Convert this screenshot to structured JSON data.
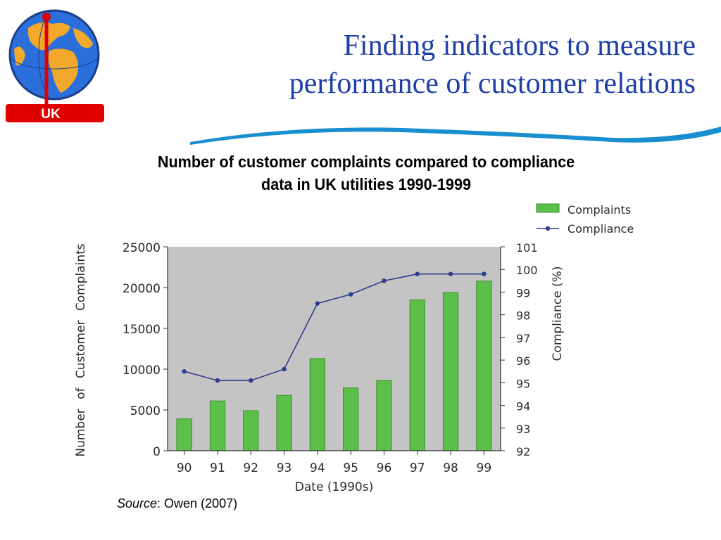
{
  "logo": {
    "badge_text": "UK",
    "badge_color": "#e00000",
    "globe_ocean": "#2a6fdb",
    "globe_land": "#f2a92b"
  },
  "slide": {
    "title_line1": "Finding indicators to measure",
    "title_line2": "performance of customer relations",
    "title_color": "#1f3fa8",
    "accent_color": "#1a8fd0"
  },
  "source": {
    "label": "Source",
    "text": ": Owen (2007)"
  },
  "chart_data": {
    "type": "bar",
    "title_line1": "Number of customer complaints compared to compliance",
    "title_line2": "data in UK utilities 1990-1999",
    "categories": [
      "90",
      "91",
      "92",
      "93",
      "94",
      "95",
      "96",
      "97",
      "98",
      "99"
    ],
    "series": [
      {
        "name": "Complaints",
        "type": "bar",
        "axis": "left",
        "color": "#5cbf4a",
        "values": [
          3900,
          6100,
          4900,
          6800,
          11300,
          7700,
          8600,
          18500,
          19400,
          20800
        ]
      },
      {
        "name": "Compliance",
        "type": "line",
        "axis": "right",
        "color": "#2e3c8c",
        "values": [
          95.5,
          95.1,
          95.1,
          95.6,
          98.5,
          98.9,
          99.5,
          99.8,
          99.8,
          99.8
        ]
      }
    ],
    "xlabel": "Date (1990s)",
    "ylabel": "Number of Customer Complaints",
    "y2label": "Compliance (%)",
    "ylim": [
      0,
      25000
    ],
    "yticks": [
      "0",
      "5000",
      "10000",
      "15000",
      "20000",
      "25000"
    ],
    "y2lim": [
      92,
      101
    ],
    "y2ticks": [
      "92",
      "93",
      "94",
      "95",
      "96",
      "97",
      "98",
      "99",
      "100",
      "101"
    ],
    "plot_background": "#c4c4c4",
    "grid": false,
    "legend_position": "top-right"
  }
}
